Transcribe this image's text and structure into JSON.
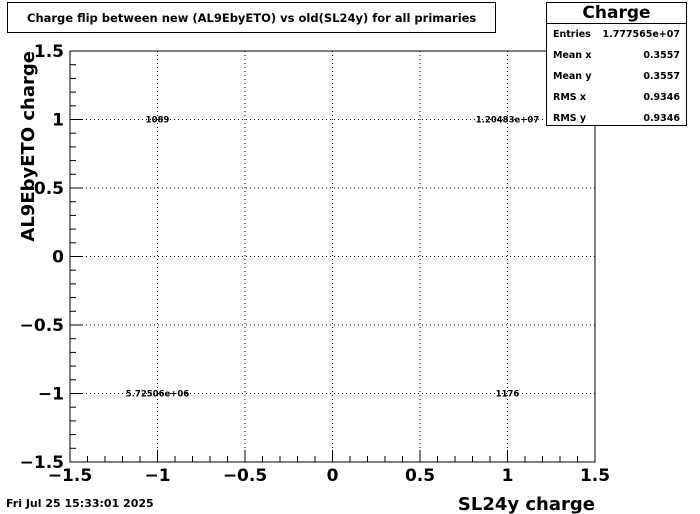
{
  "title": "Charge flip between new (AL9EbyETO) vs old(SL24y) for all primaries",
  "stats": {
    "name": "Charge",
    "rows": [
      {
        "label": "Entries",
        "value": "1.777565e+07"
      },
      {
        "label": "Mean x",
        "value": "0.3557"
      },
      {
        "label": "Mean y",
        "value": "0.3557"
      },
      {
        "label": "RMS x",
        "value": "0.9346"
      },
      {
        "label": "RMS y",
        "value": "0.9346"
      }
    ]
  },
  "footer": {
    "date": "Fri Jul 25 15:33:01 2025"
  },
  "chart_data": {
    "type": "heatmap",
    "title": "Charge flip between new (AL9EbyETO) vs old(SL24y) for all primaries",
    "xlabel": "SL24y charge",
    "ylabel": "AL9EbyETO charge",
    "xlim": [
      -1.5,
      1.5
    ],
    "ylim": [
      -1.5,
      1.5
    ],
    "xticks": [
      "−1.5",
      "−1",
      "−0.5",
      "0",
      "0.5",
      "1",
      "1.5"
    ],
    "yticks": [
      "−1.5",
      "−1",
      "−0.5",
      "0",
      "0.5",
      "1",
      "1.5"
    ],
    "tick_values": [
      -1.5,
      -1,
      -0.5,
      0,
      0.5,
      1,
      1.5
    ],
    "grid": true,
    "cells": [
      {
        "x": -1,
        "y": 1,
        "label": "1089"
      },
      {
        "x": 1,
        "y": 1,
        "label": "1.20483e+07"
      },
      {
        "x": -1,
        "y": -1,
        "label": "5.72506e+06"
      },
      {
        "x": 1,
        "y": -1,
        "label": "1176"
      }
    ]
  }
}
